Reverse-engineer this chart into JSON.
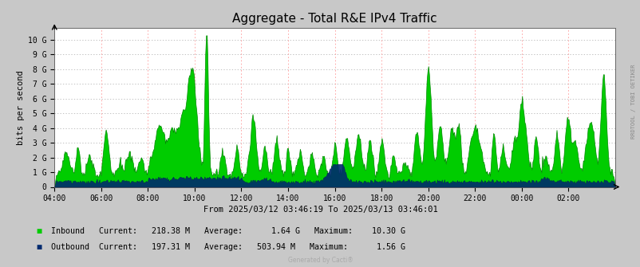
{
  "title": "Aggregate - Total R&E IPv4 Traffic",
  "subtitle": "From 2025/03/12 03:46:19 To 2025/03/13 03:46:01",
  "ylabel": "bits per second",
  "xlabel_ticks": [
    "04:00",
    "06:00",
    "08:00",
    "10:00",
    "12:00",
    "14:00",
    "16:00",
    "18:00",
    "20:00",
    "22:00",
    "00:00",
    "02:00"
  ],
  "ytick_labels": [
    "0",
    "1 G",
    "2 G",
    "3 G",
    "4 G",
    "5 G",
    "6 G",
    "7 G",
    "8 G",
    "9 G",
    "10 G"
  ],
  "ytick_values": [
    0,
    1000000000.0,
    2000000000.0,
    3000000000.0,
    4000000000.0,
    5000000000.0,
    6000000000.0,
    7000000000.0,
    8000000000.0,
    9000000000.0,
    10000000000.0
  ],
  "ylim": [
    0,
    10800000000.0
  ],
  "bg_color": "#c8c8c8",
  "plot_bg_color": "#ffffff",
  "grid_color_h": "#aaaaaa",
  "grid_color_v": "#ff9999",
  "inbound_color": "#00cc00",
  "inbound_edge_color": "#008800",
  "outbound_color": "#002a6e",
  "outbound_edge_color": "#001a4e",
  "legend_inbound": "Inbound   Current:   218.38 M   Average:      1.64 G   Maximum:    10.30 G",
  "legend_outbound": "Outbound  Current:   197.31 M   Average:   503.94 M   Maximum:      1.56 G",
  "watermark": "RRDTOOL / TOBI OETIKER",
  "generated": "Generated by Cacti®",
  "n_points": 700
}
